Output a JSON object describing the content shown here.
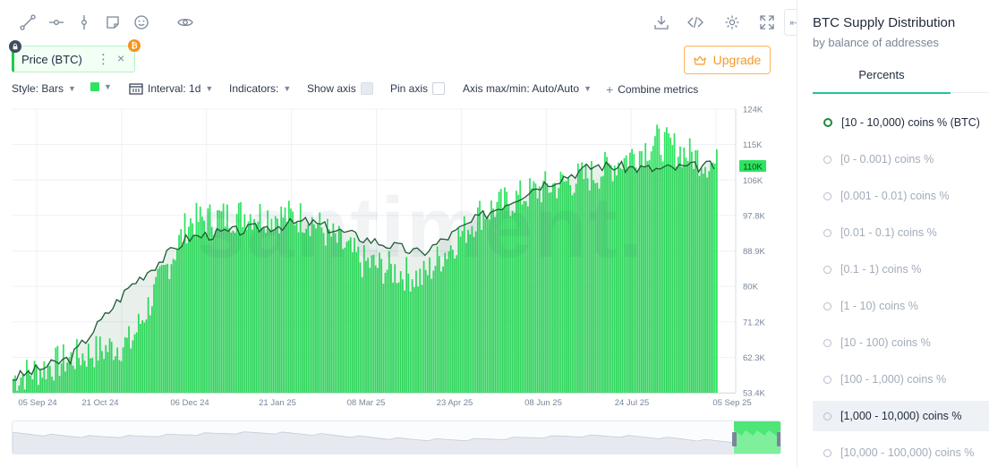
{
  "toolbar": {
    "left_icons": [
      "line-tool-icon",
      "horizontal-ray-icon",
      "vertical-line-icon",
      "note-icon",
      "emoji-icon",
      "eye-icon"
    ],
    "right_icons": [
      "download-icon",
      "embed-code-icon",
      "settings-gear-icon",
      "fullscreen-icon"
    ]
  },
  "chip": {
    "label": "Price (BTC)",
    "more": "⋮",
    "close": "×",
    "badge_letter": "₿"
  },
  "upgrade_label": "Upgrade",
  "settings": {
    "style": "Style: Bars",
    "interval": "Interval: 1d",
    "indicators": "Indicators:",
    "show_axis": "Show axis",
    "pin_axis": "Pin axis",
    "axis_maxmin": "Axis max/min: Auto/Auto",
    "combine": "Combine metrics"
  },
  "watermark": "santiment.",
  "panel": {
    "title": "BTC Supply Distribution",
    "subtitle": "by balance of addresses",
    "tab": "Percents",
    "metrics": [
      "[10 - 10,000) coins % (BTC)",
      "[0 - 0.001) coins %",
      "[0.001 - 0.01) coins %",
      "[0.01 - 0.1) coins %",
      "[0.1 - 1) coins %",
      "[1 - 10) coins %",
      "[10 - 100) coins %",
      "[100 - 1,000) coins %",
      "[1,000 - 10,000) coins %",
      "[10,000 - 100,000) coins %"
    ]
  },
  "colors": {
    "bars": "#2ee35f",
    "line": "#1f5b34",
    "price_badge": "#2ee35f",
    "accent": "#21c4a3",
    "upgrade": "#f59a2a"
  },
  "chart_data": {
    "type": "bar",
    "x_ticks": [
      "05 Sep 24",
      "21 Oct 24",
      "06 Dec 24",
      "21 Jan 25",
      "08 Mar 25",
      "23 Apr 25",
      "08 Jun 25",
      "24 Jul 25",
      "05 Sep 25"
    ],
    "y_ticks": [
      "124K",
      "115K",
      "106K",
      "97.8K",
      "88.9K",
      "80K",
      "71.2K",
      "62.3K",
      "53.4K"
    ],
    "y_range": [
      53400,
      124000
    ],
    "current_price_label": "110K",
    "current_price": 110000,
    "x_start": "2024-09-05",
    "x_end": "2025-09-05",
    "series": [
      {
        "name": "[10 - 10,000) coins % (BTC)",
        "style": "bars",
        "description": "daily bars, monthly sample of approximate values",
        "x": [
          "2024-09-05",
          "2024-10-05",
          "2024-11-05",
          "2024-12-05",
          "2025-01-05",
          "2025-02-05",
          "2025-03-05",
          "2025-04-05",
          "2025-05-05",
          "2025-06-05",
          "2025-07-05",
          "2025-08-05",
          "2025-09-05"
        ],
        "values": [
          57000,
          62000,
          66000,
          96000,
          98000,
          97000,
          86000,
          82000,
          98000,
          104000,
          108000,
          116000,
          110000
        ]
      },
      {
        "name": "Price (BTC)",
        "style": "line",
        "x": [
          "2024-09-05",
          "2024-10-05",
          "2024-11-05",
          "2024-12-05",
          "2025-01-05",
          "2025-02-05",
          "2025-03-05",
          "2025-04-05",
          "2025-05-05",
          "2025-06-05",
          "2025-07-05",
          "2025-08-05",
          "2025-09-05"
        ],
        "values": [
          57000,
          62000,
          80000,
          92000,
          94000,
          96000,
          92000,
          88000,
          97000,
          105000,
          110000,
          109000,
          110000
        ]
      }
    ],
    "grid": true,
    "legend": "none"
  }
}
